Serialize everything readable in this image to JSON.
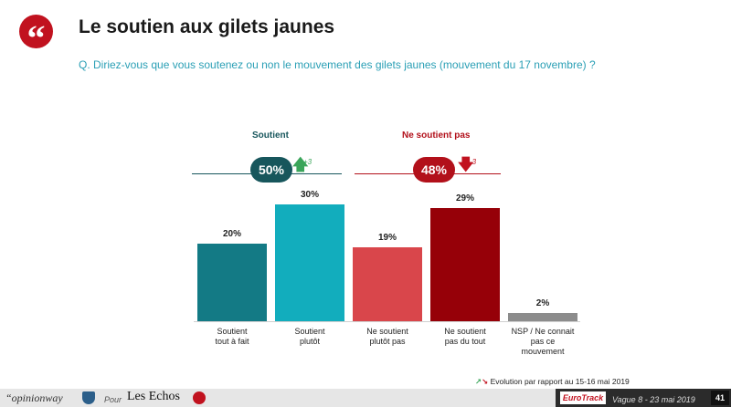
{
  "header": {
    "badge_glyph": "“",
    "title": "Le soutien aux gilets jaunes",
    "question": "Q. Diriez-vous que vous soutenez ou non le mouvement des gilets jaunes (mouvement du 17 novembre) ?"
  },
  "colors": {
    "soutient_dark": "#137a85",
    "soutient_light": "#12adbd",
    "ne_soutient_light": "#d9464b",
    "ne_soutient_dark": "#960008",
    "nsp": "#8c8c8c",
    "pill_soutient": "#17565c",
    "pill_ne_soutient": "#b2101a",
    "arrow_up": "#3aa55a",
    "arrow_down": "#c1121f"
  },
  "groups": [
    {
      "label": "Soutient",
      "total": "50%",
      "delta": "+3",
      "direction": "up"
    },
    {
      "label": "Ne soutient pas",
      "total": "48%",
      "delta": "-3",
      "direction": "down"
    }
  ],
  "chart_data": {
    "type": "bar",
    "categories": [
      "Soutient tout à fait",
      "Soutient plutôt",
      "Ne soutient plutôt pas",
      "Ne soutient pas du tout",
      "NSP / Ne connait pas ce mouvement"
    ],
    "values": [
      20,
      30,
      19,
      29,
      2
    ],
    "value_labels": [
      "20%",
      "30%",
      "19%",
      "29%",
      "2%"
    ],
    "label_lines": [
      [
        "Soutient",
        "tout à fait"
      ],
      [
        "Soutient",
        "plutôt"
      ],
      [
        "Ne soutient",
        "plutôt pas"
      ],
      [
        "Ne soutient",
        "pas du tout"
      ],
      [
        "NSP / Ne connait",
        "pas ce",
        "mouvement"
      ]
    ],
    "ylim": [
      0,
      30
    ]
  },
  "legend": {
    "text": "Evolution par rapport au 15-16 mai 2019"
  },
  "footer": {
    "opinionway": "“opinionway",
    "pour": "Pour",
    "les_echos": "Les Echos",
    "eurotrack": "EuroTrack",
    "wave": "Vague 8  -  23 mai 2019",
    "page": "41"
  }
}
